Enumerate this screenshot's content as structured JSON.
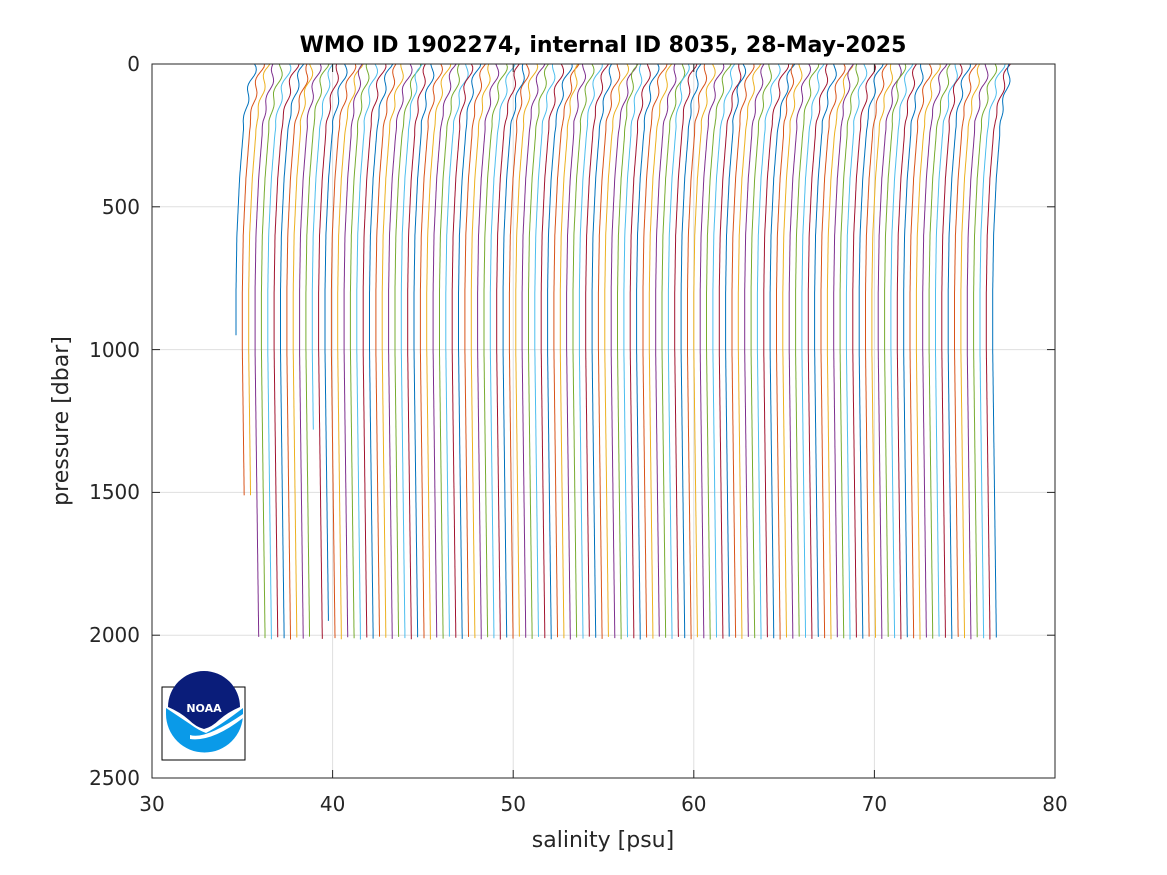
{
  "chart_data": {
    "type": "line",
    "title": "WMO ID 1902274, internal ID 8035, 28-May-2025",
    "xlabel": "salinity [psu]",
    "ylabel": "pressure [dbar]",
    "xlim": [
      30,
      80
    ],
    "ylim": [
      0,
      2500
    ],
    "y_reversed": true,
    "grid": true,
    "legend": "none",
    "x_ticks": [
      "30",
      "40",
      "50",
      "60",
      "70",
      "80"
    ],
    "y_ticks": [
      "0",
      "500",
      "1000",
      "1500",
      "2000",
      "2500"
    ],
    "series_colors": [
      "#0072BD",
      "#D95319",
      "#EDB120",
      "#7E2F8E",
      "#77AC30",
      "#4DBEEE",
      "#A2142F"
    ],
    "profile_shape": {
      "pressure": [
        0,
        5,
        80,
        200,
        400,
        600,
        800,
        1000,
        1500,
        2000
      ],
      "salinity_offset": [
        -0.3,
        -0.3,
        -0.6,
        -1.0,
        -1.25,
        -1.4,
        -1.45,
        -1.45,
        -1.35,
        -1.25
      ]
    },
    "profiles": {
      "count": 120,
      "surface_salinity_first": 36.1,
      "surface_salinity_last": 78.0,
      "max_pressure_default": 2010,
      "short_profiles": [
        {
          "index": 0,
          "max_pressure": 950
        },
        {
          "index": 1,
          "max_pressure": 1510
        },
        {
          "index": 2,
          "max_pressure": 1510
        },
        {
          "index": 12,
          "max_pressure": 1280
        },
        {
          "index": 14,
          "max_pressure": 1950
        }
      ]
    }
  },
  "logo": {
    "name": "NOAA",
    "text": "NOAA",
    "colors": {
      "dark": "#0a1d7a",
      "light": "#0a9ae8",
      "white": "#ffffff"
    }
  }
}
